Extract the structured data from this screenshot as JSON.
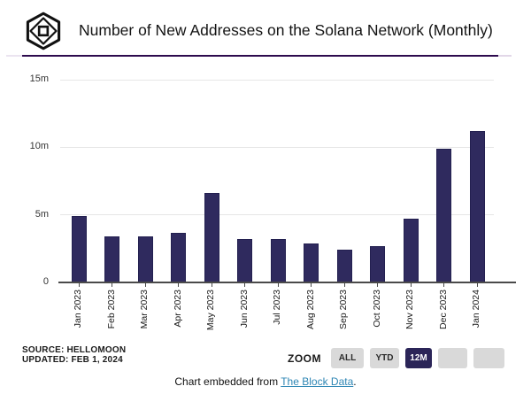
{
  "header": {
    "title": "Number of New Addresses on the Solana Network (Monthly)",
    "logo_name": "the-block-logo"
  },
  "chart_data": {
    "type": "bar",
    "title": "Number of New Addresses on the Solana Network (Monthly)",
    "categories": [
      "Jan 2023",
      "Feb 2023",
      "Mar 2023",
      "Apr 2023",
      "May 2023",
      "Jun 2023",
      "Jul 2023",
      "Aug 2023",
      "Sep 2023",
      "Oct 2023",
      "Nov 2023",
      "Dec 2023",
      "Jan 2024"
    ],
    "values": [
      4.9,
      3.4,
      3.4,
      3.7,
      6.6,
      3.2,
      3.2,
      2.9,
      2.4,
      2.7,
      4.7,
      9.9,
      11.2
    ],
    "unit": "millions of addresses",
    "xlabel": "",
    "ylabel": "",
    "ylim": [
      0,
      15
    ],
    "yticks": [
      {
        "value": 0,
        "label": "0"
      },
      {
        "value": 5,
        "label": "5m"
      },
      {
        "value": 10,
        "label": "10m"
      },
      {
        "value": 15,
        "label": "15m"
      }
    ],
    "grid": true,
    "legend": "none",
    "bar_color": "#2F2A5E"
  },
  "footer": {
    "source_line1": "SOURCE: HELLOMOON",
    "source_line2": "UPDATED: FEB 1, 2024",
    "zoom_label": "ZOOM",
    "zoom_buttons": [
      {
        "label": "ALL",
        "active": false
      },
      {
        "label": "YTD",
        "active": false
      },
      {
        "label": "12M",
        "active": true
      },
      {
        "label": "",
        "active": false
      },
      {
        "label": "",
        "active": false
      }
    ],
    "embed_prefix": "Chart embedded from ",
    "embed_link_text": "The Block Data",
    "embed_suffix": "."
  },
  "colors": {
    "bar": "#2F2A5E",
    "bar_border": "#232050",
    "divider": "#2D0A4E",
    "active_button_bg": "#2B2558",
    "active_button_text": "#FFFFFF",
    "inactive_button_bg": "#D9D9D9",
    "link": "#2E86B4",
    "gridline": "#E6E6E6",
    "axis": "#4A4A4A"
  }
}
